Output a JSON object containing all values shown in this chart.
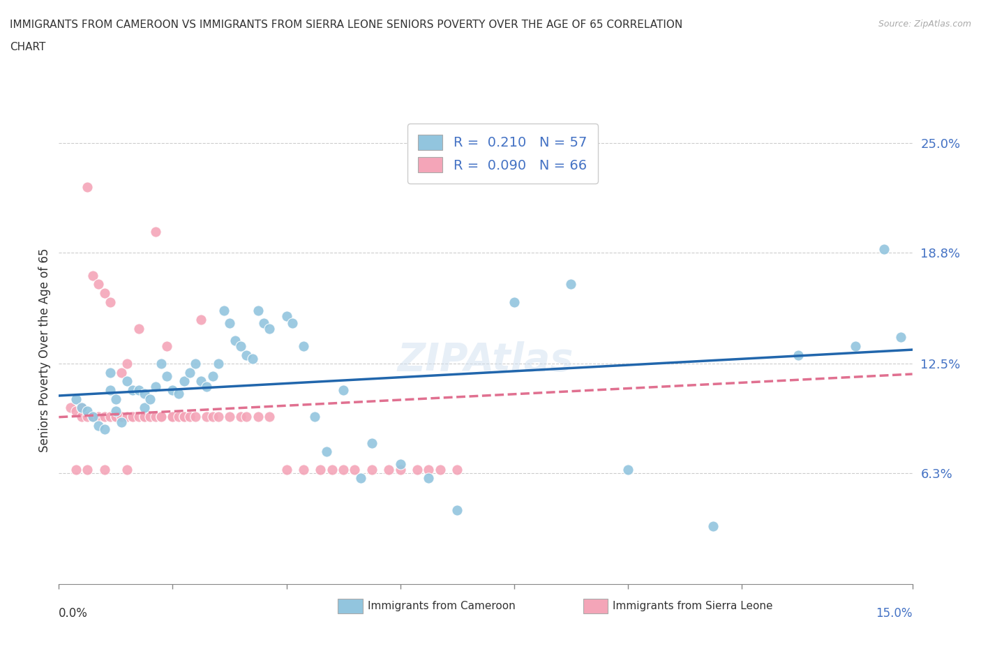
{
  "title_line1": "IMMIGRANTS FROM CAMEROON VS IMMIGRANTS FROM SIERRA LEONE SENIORS POVERTY OVER THE AGE OF 65 CORRELATION",
  "title_line2": "CHART",
  "source": "Source: ZipAtlas.com",
  "ylabel": "Seniors Poverty Over the Age of 65",
  "legend_label1": "Immigrants from Cameroon",
  "legend_label2": "Immigrants from Sierra Leone",
  "R1": 0.21,
  "N1": 57,
  "R2": 0.09,
  "N2": 66,
  "color1": "#92c5de",
  "color2": "#f4a5b8",
  "trendline1_color": "#2166ac",
  "trendline2_color": "#e07090",
  "trendline2_style": "--",
  "xlim": [
    0.0,
    0.15
  ],
  "ylim": [
    0.0,
    0.265
  ],
  "yticks": [
    0.063,
    0.125,
    0.188,
    0.25
  ],
  "ytick_labels": [
    "6.3%",
    "12.5%",
    "18.8%",
    "25.0%"
  ],
  "xticks": [
    0.0,
    0.02,
    0.04,
    0.06,
    0.08,
    0.1,
    0.12,
    0.15
  ],
  "watermark": "ZIPAtlas",
  "scatter1_x": [
    0.003,
    0.004,
    0.005,
    0.006,
    0.007,
    0.008,
    0.009,
    0.009,
    0.01,
    0.01,
    0.011,
    0.012,
    0.013,
    0.014,
    0.015,
    0.015,
    0.016,
    0.017,
    0.018,
    0.019,
    0.02,
    0.021,
    0.022,
    0.023,
    0.024,
    0.025,
    0.026,
    0.027,
    0.028,
    0.029,
    0.03,
    0.031,
    0.032,
    0.033,
    0.034,
    0.035,
    0.036,
    0.037,
    0.04,
    0.041,
    0.043,
    0.045,
    0.047,
    0.05,
    0.053,
    0.055,
    0.06,
    0.065,
    0.07,
    0.08,
    0.09,
    0.1,
    0.115,
    0.13,
    0.14,
    0.145,
    0.148
  ],
  "scatter1_y": [
    0.105,
    0.1,
    0.098,
    0.095,
    0.09,
    0.088,
    0.12,
    0.11,
    0.105,
    0.098,
    0.092,
    0.115,
    0.11,
    0.11,
    0.108,
    0.1,
    0.105,
    0.112,
    0.125,
    0.118,
    0.11,
    0.108,
    0.115,
    0.12,
    0.125,
    0.115,
    0.112,
    0.118,
    0.125,
    0.155,
    0.148,
    0.138,
    0.135,
    0.13,
    0.128,
    0.155,
    0.148,
    0.145,
    0.152,
    0.148,
    0.135,
    0.095,
    0.075,
    0.11,
    0.06,
    0.08,
    0.068,
    0.06,
    0.042,
    0.16,
    0.17,
    0.065,
    0.033,
    0.13,
    0.135,
    0.19,
    0.14
  ],
  "scatter2_x": [
    0.002,
    0.003,
    0.004,
    0.004,
    0.005,
    0.005,
    0.006,
    0.006,
    0.007,
    0.007,
    0.008,
    0.008,
    0.009,
    0.009,
    0.01,
    0.01,
    0.01,
    0.011,
    0.011,
    0.012,
    0.012,
    0.013,
    0.013,
    0.014,
    0.014,
    0.015,
    0.015,
    0.016,
    0.017,
    0.017,
    0.018,
    0.018,
    0.019,
    0.02,
    0.02,
    0.021,
    0.022,
    0.022,
    0.023,
    0.024,
    0.025,
    0.026,
    0.027,
    0.028,
    0.03,
    0.032,
    0.033,
    0.035,
    0.037,
    0.04,
    0.043,
    0.046,
    0.048,
    0.05,
    0.052,
    0.055,
    0.058,
    0.06,
    0.063,
    0.065,
    0.067,
    0.07,
    0.003,
    0.005,
    0.008,
    0.012
  ],
  "scatter2_y": [
    0.1,
    0.098,
    0.1,
    0.095,
    0.225,
    0.095,
    0.175,
    0.095,
    0.17,
    0.095,
    0.095,
    0.165,
    0.095,
    0.16,
    0.095,
    0.095,
    0.095,
    0.12,
    0.095,
    0.125,
    0.095,
    0.095,
    0.095,
    0.145,
    0.095,
    0.095,
    0.095,
    0.095,
    0.095,
    0.2,
    0.095,
    0.095,
    0.135,
    0.095,
    0.095,
    0.095,
    0.095,
    0.095,
    0.095,
    0.095,
    0.15,
    0.095,
    0.095,
    0.095,
    0.095,
    0.095,
    0.095,
    0.095,
    0.095,
    0.065,
    0.065,
    0.065,
    0.065,
    0.065,
    0.065,
    0.065,
    0.065,
    0.065,
    0.065,
    0.065,
    0.065,
    0.065,
    0.065,
    0.065,
    0.065,
    0.065
  ]
}
